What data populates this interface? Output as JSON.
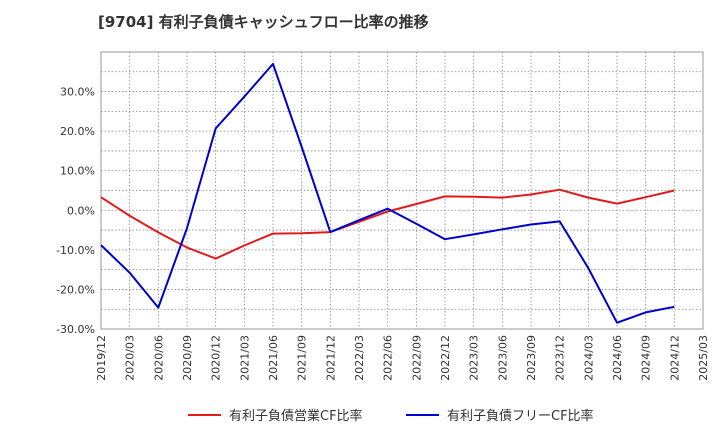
{
  "chart_data": {
    "type": "line",
    "title": "[9704]  有利子負債キャッシュフロー比率の推移",
    "x": [
      "2019/12",
      "2020/03",
      "2020/06",
      "2020/09",
      "2020/12",
      "2021/03",
      "2021/06",
      "2021/09",
      "2021/12",
      "2022/03",
      "2022/06",
      "2022/09",
      "2022/12",
      "2023/03",
      "2023/06",
      "2023/09",
      "2023/12",
      "2024/03",
      "2024/06",
      "2024/09",
      "2024/12",
      "2025/03"
    ],
    "ylim": [
      -30,
      40
    ],
    "yticks": [
      -30,
      -20,
      -10,
      0,
      10,
      20,
      30
    ],
    "ytick_labels": [
      "-30.0%",
      "-20.0%",
      "-10.0%",
      "0.0%",
      "10.0%",
      "20.0%",
      "30.0%"
    ],
    "grid": true,
    "legend_position": "bottom",
    "series": [
      {
        "name": "有利子負債営業CF比率",
        "color": "#e31a1c",
        "values": [
          3.3,
          -1.4,
          -5.6,
          -9.4,
          -12.2,
          -8.9,
          -5.9,
          -5.8,
          -5.5,
          -2.9,
          -0.3,
          1.6,
          3.5,
          3.4,
          3.2,
          4.0,
          5.2,
          3.2,
          1.7,
          3.3,
          5.0,
          null
        ]
      },
      {
        "name": "有利子負債フリーCF比率",
        "color": "#0000cc",
        "values": [
          -8.8,
          -15.8,
          -24.6,
          -4.5,
          20.7,
          28.7,
          37.0,
          16.0,
          -5.5,
          -2.5,
          0.4,
          -3.4,
          -7.3,
          -6.1,
          -4.8,
          -3.6,
          -2.8,
          -14.6,
          -28.4,
          -25.8,
          -24.4,
          null
        ]
      }
    ]
  }
}
